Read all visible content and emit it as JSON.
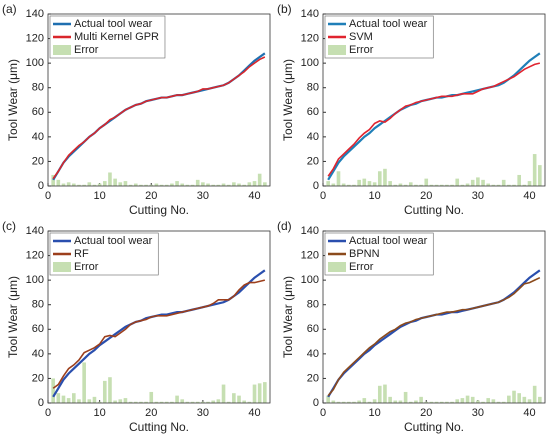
{
  "chart_data": [
    {
      "type": "line",
      "label": "(a)",
      "xlabel": "Cutting No.",
      "ylabel": "Tool Wear (μm)",
      "x": [
        1,
        2,
        3,
        4,
        5,
        6,
        7,
        8,
        9,
        10,
        11,
        12,
        13,
        14,
        15,
        16,
        17,
        18,
        19,
        20,
        21,
        22,
        23,
        24,
        25,
        26,
        27,
        28,
        29,
        30,
        31,
        32,
        33,
        34,
        35,
        36,
        37,
        38,
        39,
        40,
        41,
        42
      ],
      "xlim": [
        0,
        43
      ],
      "xticks": [
        0,
        10,
        20,
        30,
        40
      ],
      "ylim": [
        0,
        140
      ],
      "yticks": [
        0,
        20,
        40,
        60,
        80,
        100,
        120,
        140
      ],
      "series": [
        {
          "name": "Actual tool wear",
          "type": "line",
          "color": "#1f6fb0",
          "values": [
            5,
            12,
            19,
            24,
            28,
            32,
            36,
            40,
            43,
            47,
            50,
            53,
            56,
            59,
            62,
            64,
            66,
            67,
            69,
            70,
            71,
            72,
            72,
            73,
            74,
            74,
            75,
            76,
            77,
            78,
            79,
            80,
            81,
            82,
            84,
            87,
            90,
            94,
            98,
            102,
            105,
            108
          ]
        },
        {
          "name": "Multi Kernel GPR",
          "type": "line",
          "color": "#d9262b",
          "values": [
            6,
            12,
            19,
            25,
            29,
            33,
            36,
            40,
            43,
            47,
            50,
            54,
            56,
            59,
            62,
            64,
            66,
            67,
            69,
            70,
            71,
            72,
            72,
            73,
            74,
            74,
            75,
            76,
            77,
            79,
            79,
            80,
            81,
            82,
            84,
            87,
            90,
            93,
            97,
            100,
            103,
            105
          ]
        },
        {
          "name": "Error",
          "type": "bar",
          "color": "#c6dfb2",
          "values": [
            9,
            5,
            2,
            3,
            2,
            1,
            1,
            3,
            1,
            2,
            4,
            11,
            6,
            3,
            4,
            1,
            2,
            1,
            1,
            1,
            2,
            1,
            1,
            2,
            4,
            2,
            1,
            1,
            5,
            3,
            2,
            1,
            1,
            2,
            1,
            3,
            2,
            1,
            3,
            4,
            10,
            3
          ]
        }
      ]
    },
    {
      "type": "line",
      "label": "(b)",
      "xlabel": "Cutting No.",
      "ylabel": "Tool Wear (μm)",
      "x": [
        1,
        2,
        3,
        4,
        5,
        6,
        7,
        8,
        9,
        10,
        11,
        12,
        13,
        14,
        15,
        16,
        17,
        18,
        19,
        20,
        21,
        22,
        23,
        24,
        25,
        26,
        27,
        28,
        29,
        30,
        31,
        32,
        33,
        34,
        35,
        36,
        37,
        38,
        39,
        40,
        41,
        42
      ],
      "xlim": [
        0,
        43
      ],
      "xticks": [
        0,
        10,
        20,
        30,
        40
      ],
      "ylim": [
        0,
        140
      ],
      "yticks": [
        0,
        20,
        40,
        60,
        80,
        100,
        120,
        140
      ],
      "series": [
        {
          "name": "Actual tool wear",
          "type": "line",
          "color": "#1f7fb8",
          "values": [
            5,
            12,
            19,
            24,
            28,
            32,
            36,
            40,
            43,
            47,
            50,
            53,
            56,
            59,
            62,
            64,
            66,
            67,
            69,
            70,
            71,
            72,
            72,
            73,
            74,
            74,
            75,
            76,
            77,
            78,
            79,
            80,
            81,
            82,
            84,
            87,
            90,
            94,
            98,
            102,
            105,
            108
          ]
        },
        {
          "name": "SVM",
          "type": "line",
          "color": "#e0242f",
          "values": [
            8,
            14,
            22,
            26,
            30,
            34,
            39,
            43,
            46,
            51,
            53,
            52,
            55,
            59,
            62,
            65,
            66,
            68,
            69,
            70,
            71,
            72,
            73,
            73,
            73,
            74,
            75,
            75,
            75,
            77,
            79,
            80,
            81,
            83,
            85,
            87,
            89,
            92,
            95,
            97,
            99,
            100
          ]
        },
        {
          "name": "Error",
          "type": "bar",
          "color": "#c6dfb2",
          "values": [
            4,
            2,
            12,
            2,
            1,
            1,
            5,
            6,
            4,
            3,
            12,
            14,
            4,
            1,
            2,
            1,
            3,
            1,
            1,
            6,
            1,
            1,
            1,
            1,
            1,
            6,
            1,
            2,
            5,
            7,
            5,
            2,
            1,
            1,
            5,
            1,
            1,
            9,
            1,
            4,
            26,
            17
          ]
        }
      ]
    },
    {
      "type": "line",
      "label": "(c)",
      "xlabel": "Cutting No.",
      "ylabel": "Tool Wear (μm)",
      "x": [
        1,
        2,
        3,
        4,
        5,
        6,
        7,
        8,
        9,
        10,
        11,
        12,
        13,
        14,
        15,
        16,
        17,
        18,
        19,
        20,
        21,
        22,
        23,
        24,
        25,
        26,
        27,
        28,
        29,
        30,
        31,
        32,
        33,
        34,
        35,
        36,
        37,
        38,
        39,
        40,
        41,
        42
      ],
      "xlim": [
        0,
        43
      ],
      "xticks": [
        0,
        10,
        20,
        30,
        40
      ],
      "ylim": [
        0,
        140
      ],
      "yticks": [
        0,
        20,
        40,
        60,
        80,
        100,
        120,
        140
      ],
      "series": [
        {
          "name": "Actual tool wear",
          "type": "line",
          "color": "#2a4fae",
          "values": [
            5,
            12,
            19,
            24,
            28,
            32,
            36,
            40,
            43,
            47,
            50,
            53,
            56,
            59,
            62,
            64,
            66,
            67,
            69,
            70,
            71,
            72,
            72,
            73,
            74,
            74,
            75,
            76,
            77,
            78,
            79,
            80,
            81,
            82,
            84,
            87,
            90,
            94,
            98,
            102,
            105,
            108
          ]
        },
        {
          "name": "RF",
          "type": "line",
          "color": "#9c3f1c",
          "values": [
            12,
            15,
            22,
            28,
            31,
            35,
            41,
            43,
            45,
            48,
            54,
            55,
            54,
            57,
            60,
            64,
            66,
            67,
            68,
            70,
            71,
            71,
            71,
            72,
            73,
            74,
            75,
            76,
            77,
            78,
            79,
            81,
            84,
            84,
            84,
            87,
            92,
            96,
            98,
            98,
            99,
            100
          ]
        },
        {
          "name": "Error",
          "type": "bar",
          "color": "#c6dfb2",
          "values": [
            20,
            8,
            6,
            4,
            8,
            3,
            33,
            3,
            5,
            1,
            18,
            21,
            2,
            3,
            4,
            1,
            1,
            1,
            1,
            9,
            1,
            1,
            1,
            1,
            6,
            3,
            1,
            1,
            1,
            1,
            1,
            2,
            3,
            15,
            1,
            8,
            6,
            2,
            1,
            15,
            16,
            17
          ]
        }
      ]
    },
    {
      "type": "line",
      "label": "(d)",
      "xlabel": "Cutting No.",
      "ylabel": "Tool Wear (μm)",
      "x": [
        1,
        2,
        3,
        4,
        5,
        6,
        7,
        8,
        9,
        10,
        11,
        12,
        13,
        14,
        15,
        16,
        17,
        18,
        19,
        20,
        21,
        22,
        23,
        24,
        25,
        26,
        27,
        28,
        29,
        30,
        31,
        32,
        33,
        34,
        35,
        36,
        37,
        38,
        39,
        40,
        41,
        42
      ],
      "xlim": [
        0,
        43
      ],
      "xticks": [
        0,
        10,
        20,
        30,
        40
      ],
      "ylim": [
        0,
        140
      ],
      "yticks": [
        0,
        20,
        40,
        60,
        80,
        100,
        120,
        140
      ],
      "series": [
        {
          "name": "Actual tool wear",
          "type": "line",
          "color": "#2a4fae",
          "values": [
            5,
            12,
            19,
            24,
            28,
            32,
            36,
            40,
            43,
            47,
            50,
            53,
            56,
            59,
            62,
            64,
            66,
            67,
            69,
            70,
            71,
            72,
            72,
            73,
            74,
            74,
            75,
            76,
            77,
            78,
            79,
            80,
            81,
            82,
            84,
            87,
            90,
            94,
            98,
            102,
            105,
            108
          ]
        },
        {
          "name": "BPNN",
          "type": "line",
          "color": "#8b4a1c",
          "values": [
            6,
            11,
            19,
            25,
            29,
            33,
            37,
            41,
            45,
            48,
            52,
            55,
            58,
            60,
            63,
            65,
            66,
            68,
            69,
            70,
            71,
            72,
            73,
            74,
            74,
            75,
            76,
            76,
            77,
            78,
            79,
            80,
            81,
            82,
            84,
            86,
            89,
            93,
            97,
            98,
            100,
            102
          ]
        },
        {
          "name": "Error",
          "type": "bar",
          "color": "#c6dfb2",
          "values": [
            6,
            2,
            1,
            1,
            1,
            1,
            2,
            4,
            1,
            3,
            14,
            15,
            5,
            2,
            2,
            9,
            1,
            2,
            5,
            1,
            1,
            1,
            1,
            1,
            1,
            3,
            4,
            6,
            5,
            2,
            1,
            4,
            3,
            1,
            1,
            6,
            10,
            8,
            5,
            3,
            14,
            5
          ]
        }
      ]
    }
  ]
}
